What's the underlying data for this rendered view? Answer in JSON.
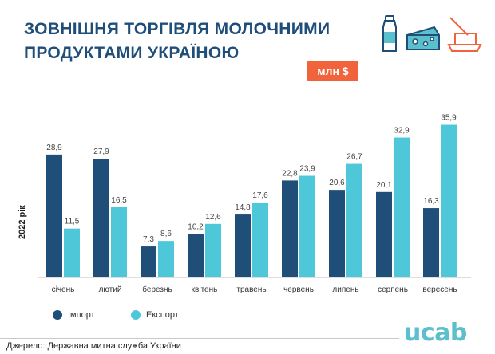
{
  "header": {
    "title_line1": "ЗОВНІШНЯ ТОРГІВЛЯ МОЛОЧНИМИ",
    "title_line2": "ПРОДУКТАМИ УКРАЇНОЮ",
    "unit_badge": "млн $",
    "icons": [
      "milk-bottle-icon",
      "cheese-icon",
      "butter-icon"
    ]
  },
  "footer": {
    "source": "Джерело: Державна митна служба України",
    "logo": "ucab"
  },
  "colors": {
    "import": "#1f4e79",
    "export": "#4ec8d8",
    "title": "#1f4e79",
    "badge": "#f1643b",
    "icon_blue": "#1f4e79",
    "icon_orange": "#f1643b",
    "icon_cyan": "#5bbfcc"
  },
  "chart_data": {
    "type": "bar",
    "categories": [
      "січень",
      "лютий",
      "березнь",
      "квітень",
      "травень",
      "червень",
      "липень",
      "серпень",
      "вересень"
    ],
    "series": [
      {
        "name": "Імпорт",
        "values": [
          28.9,
          27.9,
          7.3,
          10.2,
          14.8,
          22.8,
          20.6,
          20.1,
          16.3
        ],
        "labels": [
          "28,9",
          "27,9",
          "7,3",
          "10,2",
          "14,8",
          "22,8",
          "20,6",
          "20,1",
          "16,3"
        ]
      },
      {
        "name": "Експорт",
        "values": [
          11.5,
          16.5,
          8.6,
          12.6,
          17.6,
          23.9,
          26.7,
          32.9,
          35.9
        ],
        "labels": [
          "11,5",
          "16,5",
          "8,6",
          "12,6",
          "17,6",
          "23,9",
          "26,7",
          "32,9",
          "35,9"
        ]
      }
    ],
    "ylabel": "2022 рік",
    "ylim": [
      0,
      36
    ],
    "grid": false,
    "legend": "bottom-left"
  }
}
